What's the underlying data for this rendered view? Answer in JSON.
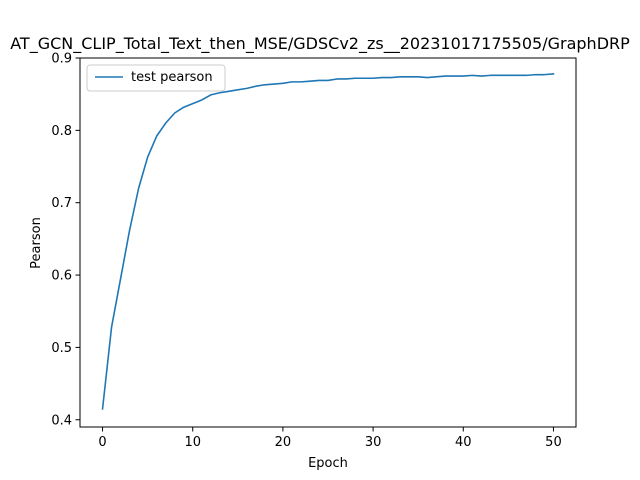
{
  "chart_data": {
    "type": "line",
    "title": "AT_GCN_CLIP_Total_Text_then_MSE/GDSCv2_zs__20231017175505/GraphDRP",
    "xlabel": "Epoch",
    "ylabel": "Pearson",
    "xlim": [
      -2.5,
      52.5
    ],
    "ylim": [
      0.39,
      0.9
    ],
    "xticks": [
      0,
      10,
      20,
      30,
      40,
      50
    ],
    "yticks": [
      0.4,
      0.5,
      0.6,
      0.7,
      0.8,
      0.9
    ],
    "xtick_labels": [
      "0",
      "10",
      "20",
      "30",
      "40",
      "50"
    ],
    "ytick_labels": [
      "0.4",
      "0.5",
      "0.6",
      "0.7",
      "0.8",
      "0.9"
    ],
    "grid": false,
    "legend_position": "top-left",
    "series": [
      {
        "name": "test pearson",
        "color": "#1f77b4",
        "x": [
          0,
          1,
          2,
          3,
          4,
          5,
          6,
          7,
          8,
          9,
          10,
          11,
          12,
          13,
          14,
          15,
          16,
          17,
          18,
          19,
          20,
          21,
          22,
          23,
          24,
          25,
          26,
          27,
          28,
          29,
          30,
          31,
          32,
          33,
          34,
          35,
          36,
          37,
          38,
          39,
          40,
          41,
          42,
          43,
          44,
          45,
          46,
          47,
          48,
          49,
          50
        ],
        "y": [
          0.415,
          0.528,
          0.595,
          0.662,
          0.72,
          0.763,
          0.792,
          0.81,
          0.824,
          0.832,
          0.837,
          0.842,
          0.849,
          0.852,
          0.854,
          0.856,
          0.858,
          0.861,
          0.863,
          0.864,
          0.865,
          0.867,
          0.867,
          0.868,
          0.869,
          0.869,
          0.871,
          0.871,
          0.872,
          0.872,
          0.872,
          0.873,
          0.873,
          0.874,
          0.874,
          0.874,
          0.873,
          0.874,
          0.875,
          0.875,
          0.875,
          0.876,
          0.875,
          0.876,
          0.876,
          0.876,
          0.876,
          0.876,
          0.877,
          0.877,
          0.878
        ]
      }
    ]
  }
}
